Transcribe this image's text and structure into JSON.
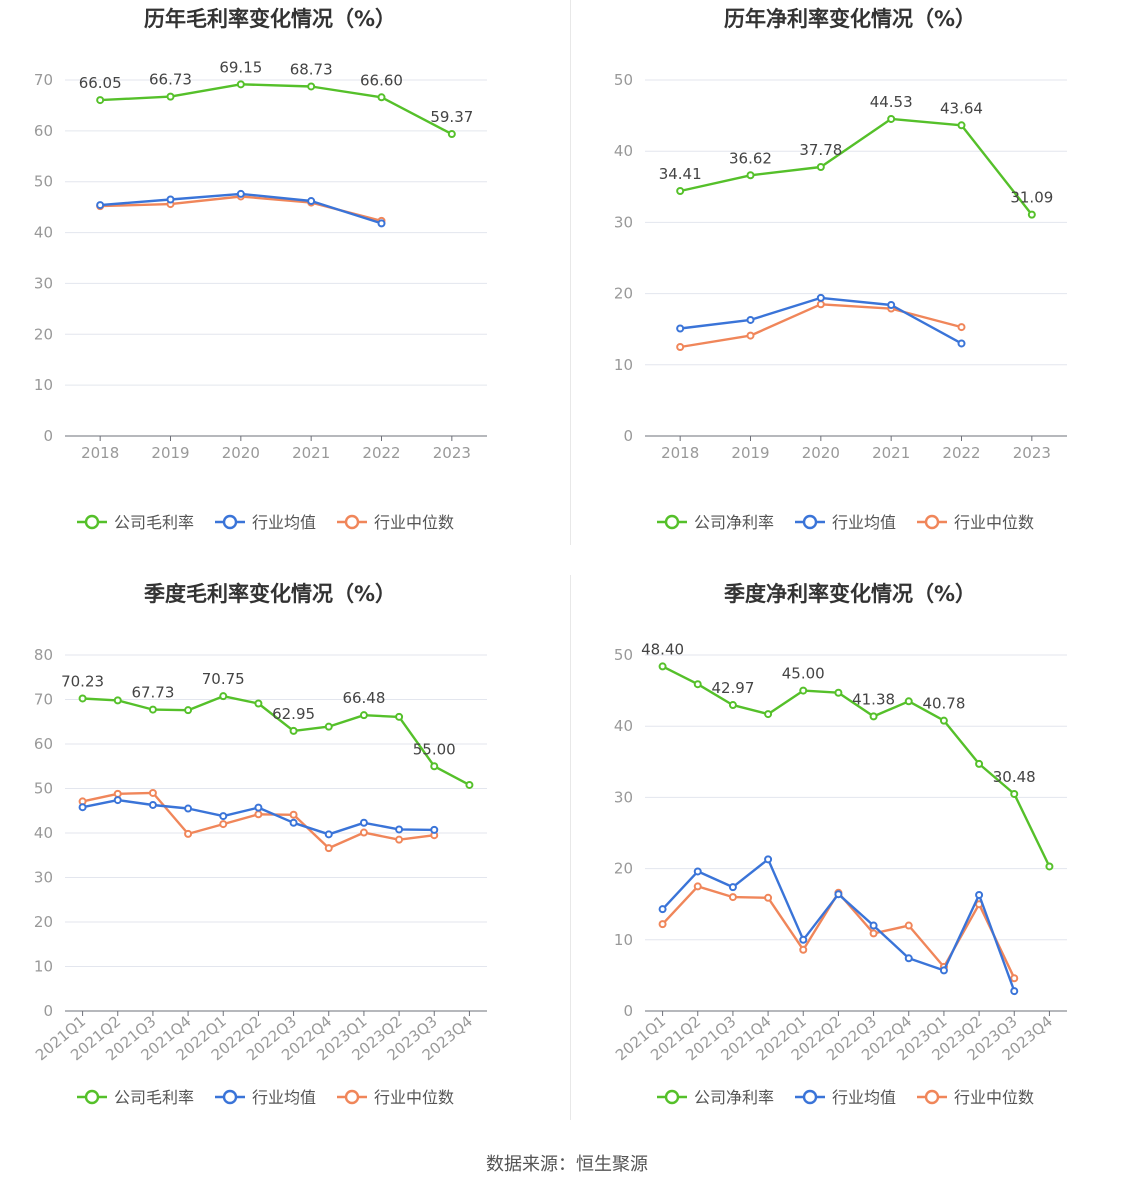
{
  "footer": "数据来源：恒生聚源",
  "colors": {
    "company": "#55c02a",
    "avg": "#3a74d8",
    "median": "#f0865a"
  },
  "chart_data": [
    {
      "type": "line",
      "title": "历年毛利率变化情况（%）",
      "categories": [
        "2018",
        "2019",
        "2020",
        "2021",
        "2022",
        "2023"
      ],
      "ylim": [
        0,
        70
      ],
      "yticks": [
        0,
        10,
        20,
        30,
        40,
        50,
        60,
        70
      ],
      "rotate_x": false,
      "series": [
        {
          "name": "公司毛利率",
          "key": "company",
          "values": [
            66.05,
            66.73,
            69.15,
            68.73,
            66.6,
            59.37
          ],
          "labels": [
            "66.05",
            "66.73",
            "69.15",
            "68.73",
            "66.60",
            "59.37"
          ]
        },
        {
          "name": "行业均值",
          "key": "avg",
          "values": [
            45.4,
            46.5,
            47.6,
            46.2,
            41.8,
            null
          ]
        },
        {
          "name": "行业中位数",
          "key": "median",
          "values": [
            45.2,
            45.6,
            47.1,
            45.9,
            42.3,
            null
          ]
        }
      ]
    },
    {
      "type": "line",
      "title": "历年净利率变化情况（%）",
      "categories": [
        "2018",
        "2019",
        "2020",
        "2021",
        "2022",
        "2023"
      ],
      "ylim": [
        0,
        50
      ],
      "yticks": [
        0,
        10,
        20,
        30,
        40,
        50
      ],
      "rotate_x": false,
      "series": [
        {
          "name": "公司净利率",
          "key": "company",
          "values": [
            34.41,
            36.62,
            37.78,
            44.53,
            43.64,
            31.09
          ],
          "labels": [
            "34.41",
            "36.62",
            "37.78",
            "44.53",
            "43.64",
            "31.09"
          ]
        },
        {
          "name": "行业均值",
          "key": "avg",
          "values": [
            15.1,
            16.3,
            19.4,
            18.4,
            13.0,
            null
          ]
        },
        {
          "name": "行业中位数",
          "key": "median",
          "values": [
            12.5,
            14.1,
            18.5,
            17.9,
            15.3,
            null
          ]
        }
      ]
    },
    {
      "type": "line",
      "title": "季度毛利率变化情况（%）",
      "categories": [
        "2021Q1",
        "2021Q2",
        "2021Q3",
        "2021Q4",
        "2022Q1",
        "2022Q2",
        "2022Q3",
        "2022Q4",
        "2023Q1",
        "2023Q2",
        "2023Q3",
        "2023Q4"
      ],
      "ylim": [
        0,
        80
      ],
      "yticks": [
        0,
        10,
        20,
        30,
        40,
        50,
        60,
        70,
        80
      ],
      "rotate_x": true,
      "series": [
        {
          "name": "公司毛利率",
          "key": "company",
          "values": [
            70.23,
            69.8,
            67.73,
            67.6,
            70.75,
            69.1,
            62.95,
            63.9,
            66.48,
            66.1,
            55.0,
            50.8
          ],
          "labels": [
            "70.23",
            "",
            "67.73",
            "",
            "70.75",
            "",
            "62.95",
            "",
            "66.48",
            "",
            "55.00",
            ""
          ]
        },
        {
          "name": "行业均值",
          "key": "avg",
          "values": [
            45.8,
            47.4,
            46.3,
            45.5,
            43.8,
            45.7,
            42.3,
            39.7,
            42.3,
            40.8,
            40.7,
            null
          ]
        },
        {
          "name": "行业中位数",
          "key": "median",
          "values": [
            47.1,
            48.8,
            49.0,
            39.8,
            42.0,
            44.2,
            44.1,
            36.6,
            40.1,
            38.5,
            39.5,
            null
          ]
        }
      ]
    },
    {
      "type": "line",
      "title": "季度净利率变化情况（%）",
      "categories": [
        "2021Q1",
        "2021Q2",
        "2021Q3",
        "2021Q4",
        "2022Q1",
        "2022Q2",
        "2022Q3",
        "2022Q4",
        "2023Q1",
        "2023Q2",
        "2023Q3",
        "2023Q4"
      ],
      "ylim": [
        0,
        50
      ],
      "yticks": [
        0,
        10,
        20,
        30,
        40,
        50
      ],
      "rotate_x": true,
      "series": [
        {
          "name": "公司净利率",
          "key": "company",
          "values": [
            48.4,
            45.9,
            42.97,
            41.7,
            45.0,
            44.7,
            41.38,
            43.5,
            40.78,
            34.7,
            30.48,
            20.3
          ],
          "labels": [
            "48.40",
            "",
            "42.97",
            "",
            "45.00",
            "",
            "41.38",
            "",
            "40.78",
            "",
            "30.48",
            ""
          ]
        },
        {
          "name": "行业均值",
          "key": "avg",
          "values": [
            14.3,
            19.6,
            17.4,
            21.3,
            10.0,
            16.4,
            12.0,
            7.4,
            5.7,
            16.3,
            2.8,
            null
          ]
        },
        {
          "name": "行业中位数",
          "key": "median",
          "values": [
            12.2,
            17.5,
            16.0,
            15.9,
            8.6,
            16.6,
            10.9,
            12.0,
            6.2,
            15.0,
            4.6,
            null
          ]
        }
      ]
    }
  ]
}
